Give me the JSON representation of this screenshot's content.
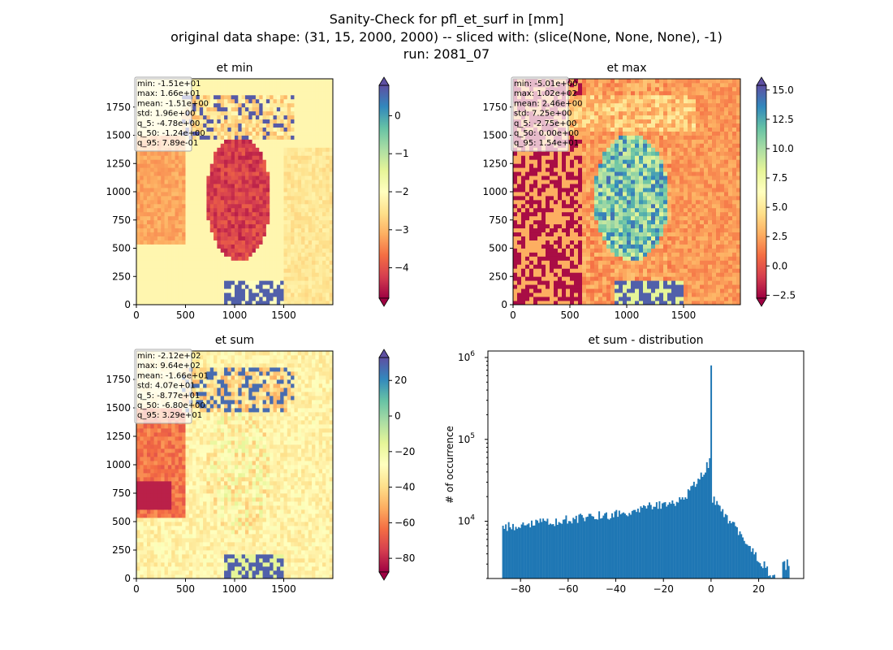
{
  "suptitle": {
    "line1": "Sanity-Check for pfl_et_surf in [mm]",
    "line2": "original data shape: (31, 15, 2000, 2000) -- sliced with: (slice(None, None, None), -1)",
    "line3": "run: 2081_07"
  },
  "colors": {
    "hist_bar": "#1f77b4",
    "axes": "#000000",
    "stats_box_border": "#aaaaaa"
  },
  "chart_data": [
    {
      "type": "heatmap",
      "title": "et min",
      "colormap": "Spectral",
      "xticks": [
        0,
        500,
        1000,
        1500
      ],
      "yticks": [
        0,
        250,
        500,
        750,
        1000,
        1250,
        1500,
        1750
      ],
      "xlim": [
        0,
        2000
      ],
      "ylim": [
        0,
        2000
      ],
      "colorbar": {
        "ticks": [
          0,
          -1,
          -2,
          -3,
          -4
        ],
        "tick_labels": [
          "0",
          "−1",
          "−2",
          "−3",
          "−4"
        ],
        "range": [
          -4.8,
          0.8
        ]
      },
      "stats": [
        "min: -1.51e+01",
        "max: 1.66e+01",
        "mean: -1.51e+00",
        "std: 1.96e+00",
        "q_5: -4.78e+00",
        "q_50: -1.24e+00",
        "q_95: 7.89e-01"
      ]
    },
    {
      "type": "heatmap",
      "title": "et max",
      "colormap": "Spectral",
      "xticks": [
        0,
        500,
        1000,
        1500
      ],
      "yticks": [
        0,
        250,
        500,
        750,
        1000,
        1250,
        1500,
        1750
      ],
      "xlim": [
        0,
        2000
      ],
      "ylim": [
        0,
        2000
      ],
      "colorbar": {
        "ticks": [
          15.0,
          12.5,
          10.0,
          7.5,
          5.0,
          2.5,
          0.0,
          -2.5
        ],
        "tick_labels": [
          "15.0",
          "12.5",
          "10.0",
          "7.5",
          "5.0",
          "2.5",
          "0.0",
          "−2.5"
        ],
        "range": [
          -2.75,
          15.4
        ]
      },
      "stats": [
        "min: -5.01e+00",
        "max: 1.02e+02",
        "mean: 2.46e+00",
        "std: 7.25e+00",
        "q_5: -2.75e+00",
        "q_50: 0.00e+00",
        "q_95: 1.54e+01"
      ]
    },
    {
      "type": "heatmap",
      "title": "et sum",
      "colormap": "Spectral",
      "xticks": [
        0,
        500,
        1000,
        1500
      ],
      "yticks": [
        0,
        250,
        500,
        750,
        1000,
        1250,
        1500,
        1750
      ],
      "xlim": [
        0,
        2000
      ],
      "ylim": [
        0,
        2000
      ],
      "colorbar": {
        "ticks": [
          20,
          0,
          -20,
          -40,
          -60,
          -80
        ],
        "tick_labels": [
          "20",
          "0",
          "−20",
          "−40",
          "−60",
          "−80"
        ],
        "range": [
          -87.7,
          32.9
        ]
      },
      "stats": [
        "min: -2.12e+02",
        "max: 9.64e+02",
        "mean: -1.66e+01",
        "std: 4.07e+01",
        "q_5: -8.77e+01",
        "q_50: -6.80e+00",
        "q_95: 3.29e+01"
      ]
    },
    {
      "type": "bar",
      "title": "et sum - distribution",
      "ylabel": "# of occurrence",
      "yscale": "log",
      "xticks": [
        -80,
        -60,
        -40,
        -20,
        0,
        20
      ],
      "xtick_labels": [
        "−80",
        "−60",
        "−40",
        "−20",
        "0",
        "20"
      ],
      "yticks": [
        10000,
        100000,
        1000000
      ],
      "ytick_labels": [
        [
          "10",
          "4"
        ],
        [
          "10",
          "5"
        ],
        [
          "10",
          "6"
        ]
      ],
      "xlim": [
        -93.7,
        38.9
      ],
      "ylim": [
        2000,
        1200000
      ],
      "bin_range": [
        -87.7,
        32.9
      ],
      "peak": {
        "x": 0,
        "value": 800000
      }
    }
  ]
}
